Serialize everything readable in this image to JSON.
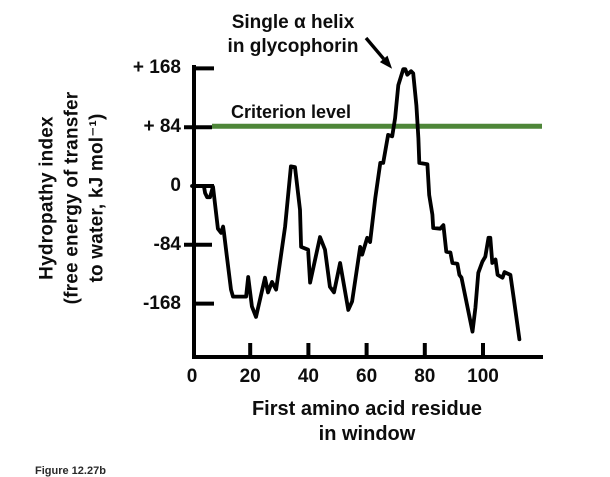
{
  "figure": {
    "caption": "Figure 12.27b",
    "background_color": "#ffffff",
    "curve_color": "#000000",
    "criterion_color": "#4e8639",
    "text_color": "#0d0d0d"
  },
  "annotation": {
    "line1": "Single α helix",
    "line2": "in glycophorin"
  },
  "criterion": {
    "label": "Criterion level"
  },
  "chart_data": {
    "type": "line",
    "title": "",
    "xlabel": "First amino acid residue in window",
    "xlabel_lines": [
      "First amino acid residue",
      "in window"
    ],
    "ylabel": "Hydropathy index (free energy of transfer to water, kJ mol⁻¹)",
    "ylabel_lines": [
      "Hydropathy index",
      "(free energy of transfer",
      "to water, kJ mol⁻¹)"
    ],
    "xlim": [
      0,
      120
    ],
    "ylim": [
      -244,
      180
    ],
    "grid": false,
    "legend": "none",
    "x_ticks": [
      0,
      20,
      40,
      60,
      80,
      100
    ],
    "y_tick_labels": [
      "+ 168",
      "+ 84",
      "0",
      "-84",
      "-168"
    ],
    "y_tick_values": [
      168,
      84,
      0,
      -84,
      -168
    ],
    "criterion_level": 84,
    "annotations": [
      {
        "text": "Single α helix in glycophorin",
        "points_to_x": 71.5,
        "points_to_y": 168
      },
      {
        "text": "Criterion level",
        "at_y": 84
      }
    ],
    "series": [
      {
        "name": "hydropathy",
        "points": [
          [
            0,
            0
          ],
          [
            4.1,
            0
          ],
          [
            4.5,
            -10
          ],
          [
            5.2,
            -16
          ],
          [
            6.2,
            -16
          ],
          [
            7.2,
            -1
          ],
          [
            8.9,
            -61
          ],
          [
            10,
            -67
          ],
          [
            10.7,
            -58
          ],
          [
            11,
            -67
          ],
          [
            12,
            -101
          ],
          [
            13.4,
            -148
          ],
          [
            14.1,
            -158
          ],
          [
            18.6,
            -158
          ],
          [
            19.3,
            -130
          ],
          [
            20.6,
            -172
          ],
          [
            22,
            -187
          ],
          [
            25.1,
            -131
          ],
          [
            26.1,
            -152
          ],
          [
            27.5,
            -137
          ],
          [
            28.9,
            -148
          ],
          [
            32,
            -58
          ],
          [
            34,
            28
          ],
          [
            35.4,
            27
          ],
          [
            37.1,
            -34
          ],
          [
            37.5,
            -87
          ],
          [
            39.9,
            -91
          ],
          [
            40.6,
            -138
          ],
          [
            44,
            -73
          ],
          [
            45.7,
            -91
          ],
          [
            47.4,
            -144
          ],
          [
            48.8,
            -152
          ],
          [
            50.9,
            -110
          ],
          [
            53.7,
            -177
          ],
          [
            55,
            -165
          ],
          [
            57.8,
            -87
          ],
          [
            58.5,
            -98
          ],
          [
            60.2,
            -74
          ],
          [
            61.2,
            -80
          ],
          [
            63,
            -17
          ],
          [
            64.7,
            33
          ],
          [
            65.7,
            33
          ],
          [
            67.4,
            73
          ],
          [
            68.8,
            71
          ],
          [
            69.8,
            97
          ],
          [
            70.9,
            144
          ],
          [
            72.6,
            167
          ],
          [
            73.3,
            167
          ],
          [
            74,
            159
          ],
          [
            75.3,
            164
          ],
          [
            76,
            161
          ],
          [
            77.1,
            115
          ],
          [
            77.8,
            68
          ],
          [
            78.1,
            33
          ],
          [
            80.9,
            31
          ],
          [
            81.5,
            -13
          ],
          [
            82.6,
            -41
          ],
          [
            82.9,
            -60
          ],
          [
            85.3,
            -61
          ],
          [
            86.4,
            -56
          ],
          [
            87.4,
            -94
          ],
          [
            88.8,
            -95
          ],
          [
            89.5,
            -110
          ],
          [
            91.2,
            -111
          ],
          [
            91.9,
            -127
          ],
          [
            92.6,
            -131
          ],
          [
            96.4,
            -208
          ],
          [
            97.4,
            -174
          ],
          [
            98.4,
            -124
          ],
          [
            99.8,
            -108
          ],
          [
            100.8,
            -101
          ],
          [
            101.9,
            -74
          ],
          [
            102.5,
            -74
          ],
          [
            103.2,
            -110
          ],
          [
            104.3,
            -105
          ],
          [
            105,
            -127
          ],
          [
            106.7,
            -131
          ],
          [
            107.4,
            -123
          ],
          [
            109.4,
            -127
          ],
          [
            110.5,
            -159
          ],
          [
            112.5,
            -219
          ]
        ]
      }
    ]
  }
}
